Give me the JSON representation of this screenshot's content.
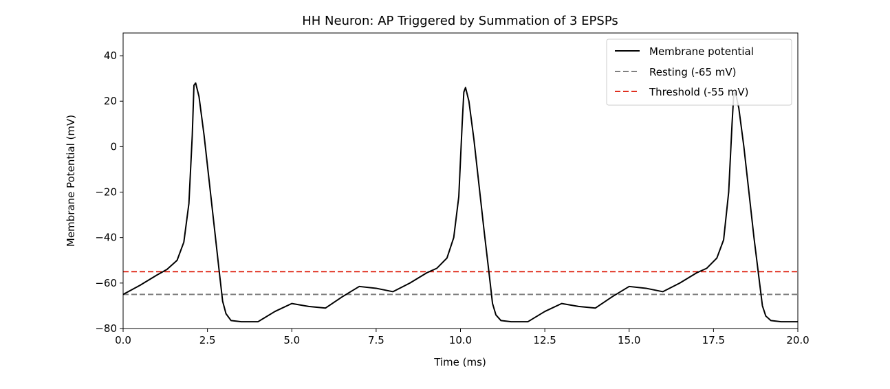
{
  "chart_data": {
    "type": "line",
    "title": "HH Neuron: AP Triggered by Summation of 3 EPSPs",
    "xlabel": "Time (ms)",
    "ylabel": "Membrane Potential (mV)",
    "xlim": [
      0,
      20
    ],
    "ylim": [
      -80,
      50
    ],
    "xticks": [
      0,
      2.5,
      5,
      7.5,
      10,
      12.5,
      15,
      17.5,
      20
    ],
    "xtick_labels": [
      "0.0",
      "2.5",
      "5.0",
      "7.5",
      "10.0",
      "12.5",
      "15.0",
      "17.5",
      "20.0"
    ],
    "yticks": [
      -80,
      -60,
      -40,
      -20,
      0,
      20,
      40
    ],
    "ytick_labels": [
      "−80",
      "−60",
      "−40",
      "−20",
      "0",
      "20",
      "40"
    ],
    "grid": false,
    "legend_position": "top-right",
    "series": [
      {
        "name": "Membrane potential",
        "color": "#000000",
        "style": "solid",
        "x": [
          0,
          0.5,
          1.0,
          1.3,
          1.6,
          1.8,
          1.95,
          2.05,
          2.1,
          2.15,
          2.25,
          2.4,
          2.55,
          2.7,
          2.85,
          2.95,
          3.05,
          3.2,
          3.5,
          4.0,
          4.5,
          5.0,
          5.5,
          6.0,
          6.5,
          7.0,
          7.5,
          8.0,
          8.5,
          9.0,
          9.3,
          9.6,
          9.8,
          9.95,
          10.05,
          10.1,
          10.15,
          10.25,
          10.4,
          10.55,
          10.7,
          10.85,
          10.95,
          11.05,
          11.2,
          11.5,
          12.0,
          12.5,
          13.0,
          13.5,
          14.0,
          14.5,
          15.0,
          15.5,
          16.0,
          16.5,
          17.0,
          17.3,
          17.6,
          17.8,
          17.95,
          18.05,
          18.1,
          18.15,
          18.25,
          18.4,
          18.55,
          18.7,
          18.85,
          18.95,
          19.05,
          19.2,
          19.5,
          20.0
        ],
        "y": [
          -65,
          -61,
          -56.5,
          -54,
          -50,
          -42,
          -25,
          5,
          27,
          28,
          22,
          5,
          -15,
          -35,
          -55,
          -68,
          -73.5,
          -76.5,
          -77,
          -77,
          -72.5,
          -69,
          -70.3,
          -71,
          -66,
          -61.5,
          -62.3,
          -63.8,
          -60,
          -55.5,
          -53.5,
          -49,
          -40,
          -22,
          10,
          24,
          26,
          20,
          3,
          -17,
          -37,
          -56,
          -69,
          -74,
          -76.5,
          -77,
          -77,
          -72.5,
          -69,
          -70.3,
          -71,
          -66,
          -61.5,
          -62.3,
          -63.8,
          -60,
          -55.5,
          -53.5,
          -49,
          -41,
          -20,
          10,
          23,
          24,
          17,
          0,
          -20,
          -40,
          -58,
          -70,
          -74.5,
          -76.5,
          -77,
          -77
        ]
      },
      {
        "name": "Resting (-65 mV)",
        "color": "#808080",
        "style": "dashed",
        "value": -65
      },
      {
        "name": "Threshold (-55 mV)",
        "color": "#e03020",
        "style": "dashed",
        "value": -55
      }
    ]
  }
}
